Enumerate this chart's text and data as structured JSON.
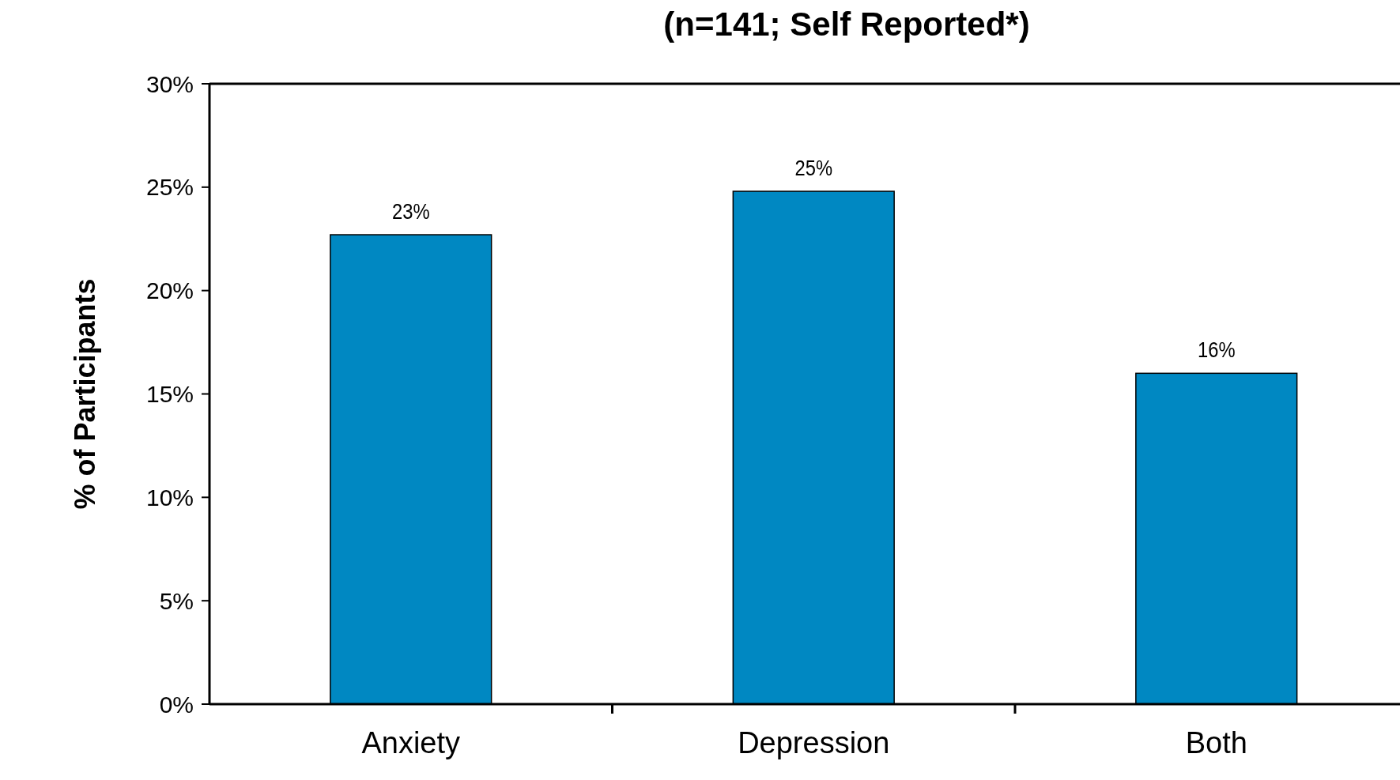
{
  "chart_data": {
    "type": "bar",
    "title": "(n=141; Self Reported*)",
    "ylabel": "% of Participants",
    "categories": [
      "Anxiety",
      "Depression",
      "Both"
    ],
    "values": [
      22.7,
      24.8,
      16
    ],
    "value_labels": [
      "23%",
      "25%",
      "16%"
    ],
    "color": "#0088c2",
    "ylim": [
      0,
      30
    ],
    "yticks": [
      {
        "value": 0,
        "label": "0%"
      },
      {
        "value": 5,
        "label": "5%"
      },
      {
        "value": 10,
        "label": "10%"
      },
      {
        "value": 15,
        "label": "15%"
      },
      {
        "value": 20,
        "label": "20%"
      },
      {
        "value": 25,
        "label": "25%"
      },
      {
        "value": 30,
        "label": "30%"
      }
    ]
  }
}
